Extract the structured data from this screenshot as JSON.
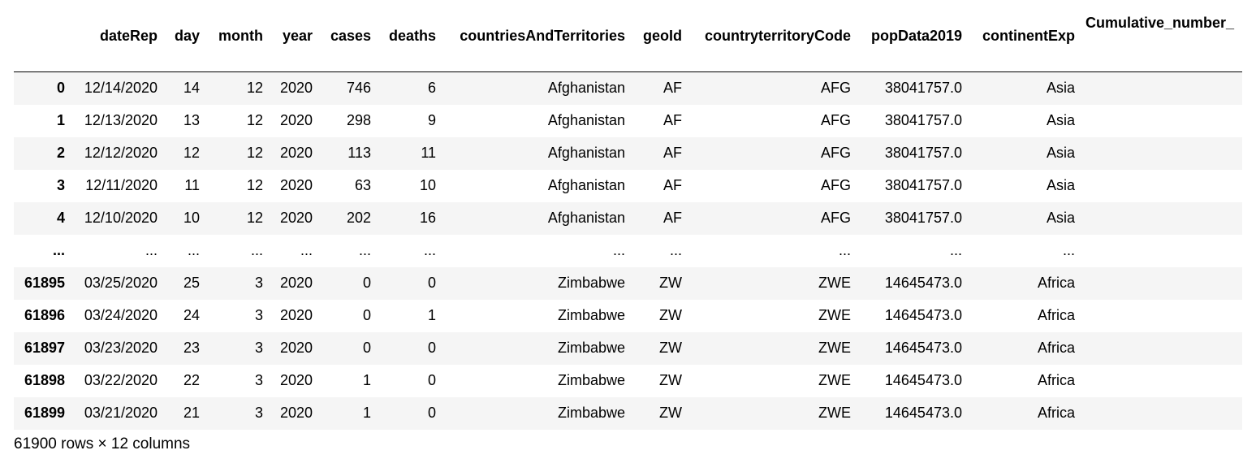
{
  "columns": {
    "index": "",
    "dateRep": "dateRep",
    "day": "day",
    "month": "month",
    "year": "year",
    "cases": "cases",
    "deaths": "deaths",
    "countriesAndTerritories": "countriesAndTerritories",
    "geoId": "geoId",
    "countryterritoryCode": "countryterritoryCode",
    "popData2019": "popData2019",
    "continentExp": "continentExp",
    "cumulative": "Cumulative_number_"
  },
  "rows": [
    {
      "idx": "0",
      "dateRep": "12/14/2020",
      "day": "14",
      "month": "12",
      "year": "2020",
      "cases": "746",
      "deaths": "6",
      "country": "Afghanistan",
      "geoId": "AF",
      "code": "AFG",
      "pop": "38041757.0",
      "continent": "Asia",
      "cum": ""
    },
    {
      "idx": "1",
      "dateRep": "12/13/2020",
      "day": "13",
      "month": "12",
      "year": "2020",
      "cases": "298",
      "deaths": "9",
      "country": "Afghanistan",
      "geoId": "AF",
      "code": "AFG",
      "pop": "38041757.0",
      "continent": "Asia",
      "cum": ""
    },
    {
      "idx": "2",
      "dateRep": "12/12/2020",
      "day": "12",
      "month": "12",
      "year": "2020",
      "cases": "113",
      "deaths": "11",
      "country": "Afghanistan",
      "geoId": "AF",
      "code": "AFG",
      "pop": "38041757.0",
      "continent": "Asia",
      "cum": ""
    },
    {
      "idx": "3",
      "dateRep": "12/11/2020",
      "day": "11",
      "month": "12",
      "year": "2020",
      "cases": "63",
      "deaths": "10",
      "country": "Afghanistan",
      "geoId": "AF",
      "code": "AFG",
      "pop": "38041757.0",
      "continent": "Asia",
      "cum": ""
    },
    {
      "idx": "4",
      "dateRep": "12/10/2020",
      "day": "10",
      "month": "12",
      "year": "2020",
      "cases": "202",
      "deaths": "16",
      "country": "Afghanistan",
      "geoId": "AF",
      "code": "AFG",
      "pop": "38041757.0",
      "continent": "Asia",
      "cum": ""
    },
    {
      "idx": "...",
      "dateRep": "...",
      "day": "...",
      "month": "...",
      "year": "...",
      "cases": "...",
      "deaths": "...",
      "country": "...",
      "geoId": "...",
      "code": "...",
      "pop": "...",
      "continent": "...",
      "cum": ""
    },
    {
      "idx": "61895",
      "dateRep": "03/25/2020",
      "day": "25",
      "month": "3",
      "year": "2020",
      "cases": "0",
      "deaths": "0",
      "country": "Zimbabwe",
      "geoId": "ZW",
      "code": "ZWE",
      "pop": "14645473.0",
      "continent": "Africa",
      "cum": ""
    },
    {
      "idx": "61896",
      "dateRep": "03/24/2020",
      "day": "24",
      "month": "3",
      "year": "2020",
      "cases": "0",
      "deaths": "1",
      "country": "Zimbabwe",
      "geoId": "ZW",
      "code": "ZWE",
      "pop": "14645473.0",
      "continent": "Africa",
      "cum": ""
    },
    {
      "idx": "61897",
      "dateRep": "03/23/2020",
      "day": "23",
      "month": "3",
      "year": "2020",
      "cases": "0",
      "deaths": "0",
      "country": "Zimbabwe",
      "geoId": "ZW",
      "code": "ZWE",
      "pop": "14645473.0",
      "continent": "Africa",
      "cum": ""
    },
    {
      "idx": "61898",
      "dateRep": "03/22/2020",
      "day": "22",
      "month": "3",
      "year": "2020",
      "cases": "1",
      "deaths": "0",
      "country": "Zimbabwe",
      "geoId": "ZW",
      "code": "ZWE",
      "pop": "14645473.0",
      "continent": "Africa",
      "cum": ""
    },
    {
      "idx": "61899",
      "dateRep": "03/21/2020",
      "day": "21",
      "month": "3",
      "year": "2020",
      "cases": "1",
      "deaths": "0",
      "country": "Zimbabwe",
      "geoId": "ZW",
      "code": "ZWE",
      "pop": "14645473.0",
      "continent": "Africa",
      "cum": ""
    }
  ],
  "summary": "61900 rows × 12 columns",
  "colors": {
    "stripe": "#f5f5f5",
    "background": "#ffffff",
    "text": "#000000"
  }
}
